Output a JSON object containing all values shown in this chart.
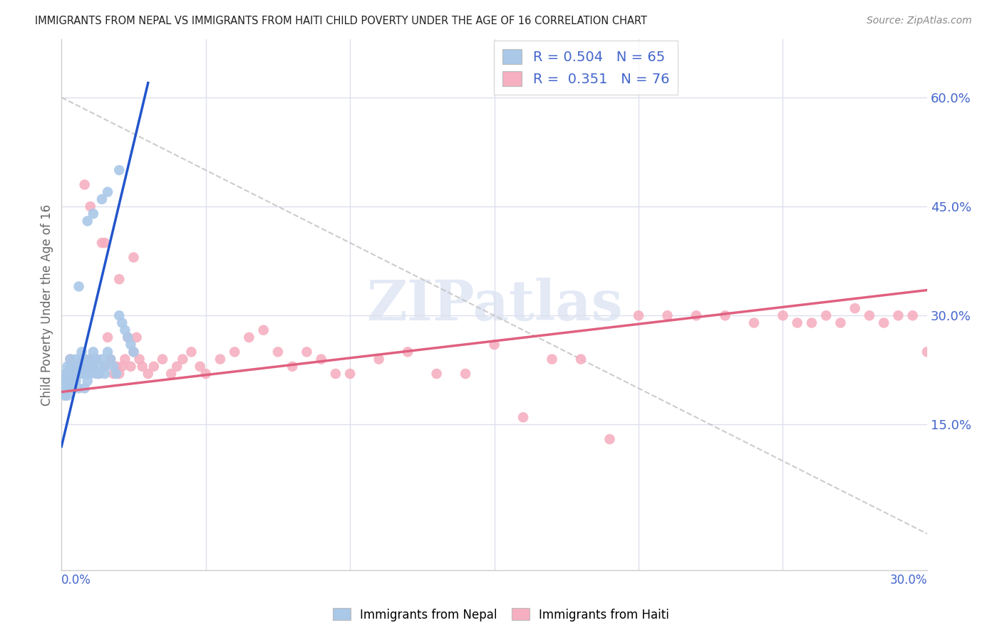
{
  "title": "IMMIGRANTS FROM NEPAL VS IMMIGRANTS FROM HAITI CHILD POVERTY UNDER THE AGE OF 16 CORRELATION CHART",
  "source": "Source: ZipAtlas.com",
  "ylabel": "Child Poverty Under the Age of 16",
  "ytick_labels": [
    "15.0%",
    "30.0%",
    "45.0%",
    "60.0%"
  ],
  "ytick_values": [
    0.15,
    0.3,
    0.45,
    0.6
  ],
  "xtick_positions": [
    0.05,
    0.1,
    0.15,
    0.2,
    0.25
  ],
  "xlim": [
    0.0,
    0.3
  ],
  "ylim": [
    -0.05,
    0.68
  ],
  "nepal_R": 0.504,
  "nepal_N": 65,
  "haiti_R": 0.351,
  "haiti_N": 76,
  "nepal_color": "#aac8e8",
  "haiti_color": "#f5afc0",
  "nepal_line_color": "#2255cc",
  "haiti_line_color": "#e06080",
  "dashed_line_color": "#c0c0c0",
  "background_color": "#ffffff",
  "grid_color": "#dde0ee",
  "watermark_color": "#ccd8ee",
  "tick_label_color": "#4466cc",
  "nepal_x": [
    0.001,
    0.001,
    0.001,
    0.001,
    0.002,
    0.002,
    0.002,
    0.002,
    0.002,
    0.003,
    0.003,
    0.003,
    0.003,
    0.003,
    0.003,
    0.004,
    0.004,
    0.004,
    0.004,
    0.004,
    0.005,
    0.005,
    0.005,
    0.005,
    0.006,
    0.006,
    0.006,
    0.006,
    0.007,
    0.007,
    0.007,
    0.007,
    0.008,
    0.008,
    0.008,
    0.009,
    0.009,
    0.009,
    0.01,
    0.01,
    0.01,
    0.011,
    0.011,
    0.012,
    0.012,
    0.013,
    0.013,
    0.014,
    0.015,
    0.015,
    0.016,
    0.017,
    0.018,
    0.019,
    0.02,
    0.021,
    0.022,
    0.023,
    0.024,
    0.025,
    0.009,
    0.011,
    0.014,
    0.016,
    0.02
  ],
  "nepal_y": [
    0.2,
    0.21,
    0.22,
    0.19,
    0.21,
    0.22,
    0.2,
    0.23,
    0.19,
    0.23,
    0.2,
    0.22,
    0.21,
    0.2,
    0.24,
    0.22,
    0.23,
    0.2,
    0.21,
    0.22,
    0.22,
    0.23,
    0.21,
    0.24,
    0.23,
    0.34,
    0.22,
    0.2,
    0.24,
    0.22,
    0.25,
    0.23,
    0.22,
    0.24,
    0.2,
    0.21,
    0.23,
    0.22,
    0.23,
    0.24,
    0.22,
    0.23,
    0.25,
    0.22,
    0.24,
    0.23,
    0.22,
    0.24,
    0.23,
    0.22,
    0.25,
    0.24,
    0.23,
    0.22,
    0.3,
    0.29,
    0.28,
    0.27,
    0.26,
    0.25,
    0.43,
    0.44,
    0.46,
    0.47,
    0.5
  ],
  "haiti_x": [
    0.002,
    0.003,
    0.004,
    0.005,
    0.006,
    0.007,
    0.008,
    0.009,
    0.01,
    0.011,
    0.012,
    0.013,
    0.014,
    0.015,
    0.016,
    0.017,
    0.018,
    0.019,
    0.02,
    0.021,
    0.022,
    0.023,
    0.024,
    0.025,
    0.026,
    0.027,
    0.028,
    0.03,
    0.032,
    0.035,
    0.038,
    0.04,
    0.042,
    0.045,
    0.048,
    0.05,
    0.055,
    0.06,
    0.065,
    0.07,
    0.075,
    0.08,
    0.085,
    0.09,
    0.095,
    0.1,
    0.11,
    0.12,
    0.13,
    0.14,
    0.15,
    0.16,
    0.17,
    0.18,
    0.19,
    0.2,
    0.21,
    0.22,
    0.23,
    0.24,
    0.25,
    0.255,
    0.26,
    0.265,
    0.27,
    0.275,
    0.28,
    0.285,
    0.29,
    0.295,
    0.3,
    0.008,
    0.01,
    0.015,
    0.02,
    0.025
  ],
  "haiti_y": [
    0.22,
    0.24,
    0.22,
    0.23,
    0.22,
    0.23,
    0.24,
    0.23,
    0.24,
    0.23,
    0.24,
    0.22,
    0.4,
    0.23,
    0.27,
    0.24,
    0.22,
    0.23,
    0.22,
    0.23,
    0.24,
    0.27,
    0.23,
    0.25,
    0.27,
    0.24,
    0.23,
    0.22,
    0.23,
    0.24,
    0.22,
    0.23,
    0.24,
    0.25,
    0.23,
    0.22,
    0.24,
    0.25,
    0.27,
    0.28,
    0.25,
    0.23,
    0.25,
    0.24,
    0.22,
    0.22,
    0.24,
    0.25,
    0.22,
    0.22,
    0.26,
    0.16,
    0.24,
    0.24,
    0.13,
    0.3,
    0.3,
    0.3,
    0.3,
    0.29,
    0.3,
    0.29,
    0.29,
    0.3,
    0.29,
    0.31,
    0.3,
    0.29,
    0.3,
    0.3,
    0.25,
    0.48,
    0.45,
    0.4,
    0.35,
    0.38
  ],
  "nepal_line_x": [
    0.0,
    0.03
  ],
  "nepal_line_y": [
    0.12,
    0.62
  ],
  "haiti_line_x": [
    0.0,
    0.3
  ],
  "haiti_line_y": [
    0.195,
    0.335
  ],
  "dash_line_x": [
    0.0,
    0.3
  ],
  "dash_line_y": [
    0.6,
    0.0
  ]
}
